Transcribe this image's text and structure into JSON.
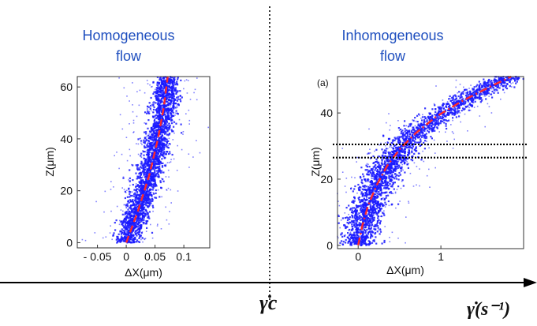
{
  "chart_data": [
    {
      "type": "scatter",
      "title": "Homogeneous flow",
      "title_lines": [
        "Homogeneous",
        "flow"
      ],
      "xlabel": "ΔX(μm)",
      "ylabel": "Z(μm)",
      "xlim": [
        -0.085,
        0.145
      ],
      "ylim": [
        -2,
        64
      ],
      "x_ticks": [
        -0.05,
        0,
        0.05,
        0.1
      ],
      "x_tick_labels": [
        "- 0.05",
        "0",
        "0.05",
        "0.1"
      ],
      "y_ticks": [
        0,
        20,
        40,
        60
      ],
      "y_tick_labels": [
        "0",
        "20",
        "40",
        "60"
      ],
      "grid": false,
      "colors": {
        "scatter": "#1a1aff",
        "fit": "#ff2a2a",
        "title": "#1f4fbf"
      },
      "fit_line": {
        "style": "dashed",
        "x": [
          0.0,
          0.02,
          0.04,
          0.055,
          0.065,
          0.072
        ],
        "y": [
          0,
          12,
          26,
          40,
          52,
          64
        ]
      },
      "scatter_spread": {
        "core_halfwidth": 0.018,
        "outlier_halfwidth": 0.06
      }
    },
    {
      "type": "scatter",
      "title": "Inhomogeneous flow",
      "title_lines": [
        "Inhomogeneous",
        "flow"
      ],
      "annotation": "(a)",
      "xlabel": "ΔX(μm)",
      "ylabel": "Z(μm)",
      "xlim": [
        -0.25,
        2.0
      ],
      "ylim": [
        -1,
        51
      ],
      "x_ticks": [
        0,
        1
      ],
      "x_tick_labels": [
        "0",
        "1"
      ],
      "y_ticks": [
        0,
        20,
        40
      ],
      "y_tick_labels": [
        "0",
        "20",
        "40"
      ],
      "grid": false,
      "colors": {
        "scatter": "#1a1aff",
        "fit": "#ff2a2a",
        "band": "#000000"
      },
      "fit_line": {
        "style": "dash-dot",
        "x": [
          0.0,
          0.05,
          0.12,
          0.22,
          0.35,
          0.5,
          0.7,
          0.95,
          1.25,
          1.6,
          1.85
        ],
        "y": [
          0,
          6,
          12,
          18,
          24,
          29,
          34,
          39,
          43.5,
          48,
          51
        ]
      },
      "shear_band_lines_y": [
        26.5,
        30.5
      ],
      "scatter_spread": {
        "core_halfwidth": 0.18,
        "outlier_halfwidth": 0.45
      }
    }
  ],
  "bottom_axis": {
    "critical_label": "γ̇c",
    "axis_label": "γ̇(s⁻¹)"
  }
}
